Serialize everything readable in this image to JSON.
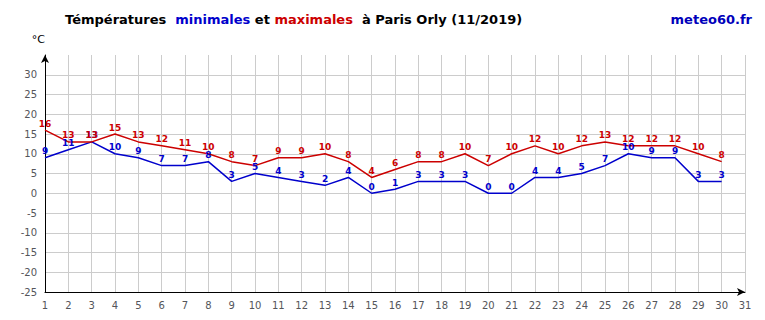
{
  "chart_data": {
    "type": "line",
    "title": "Témpératures  minimales et maximales  à Paris Orly (11/2019)",
    "y_label": "°C",
    "annotations": [
      {
        "text": "meteo60.fr",
        "color": "#0000bb"
      }
    ],
    "x": [
      1,
      2,
      3,
      4,
      5,
      6,
      7,
      8,
      9,
      10,
      11,
      12,
      13,
      14,
      15,
      16,
      17,
      18,
      19,
      20,
      21,
      22,
      23,
      24,
      25,
      26,
      27,
      28,
      29,
      30
    ],
    "series": [
      {
        "name": "minimales",
        "color": "#0000cc",
        "values": [
          9,
          11,
          13,
          10,
          9,
          7,
          7,
          8,
          3,
          5,
          4,
          3,
          2,
          4,
          0,
          1,
          3,
          3,
          3,
          0,
          0,
          4,
          4,
          5,
          7,
          10,
          9,
          9,
          3,
          3
        ]
      },
      {
        "name": "maximales",
        "color": "#cc0000",
        "values": [
          16,
          13,
          13,
          15,
          13,
          12,
          11,
          10,
          8,
          7,
          9,
          9,
          10,
          8,
          4,
          6,
          8,
          8,
          10,
          7,
          10,
          12,
          10,
          12,
          13,
          12,
          12,
          12,
          10,
          8
        ]
      }
    ],
    "xlim": [
      1,
      31
    ],
    "xticks": [
      1,
      2,
      3,
      4,
      5,
      6,
      7,
      8,
      9,
      10,
      11,
      12,
      13,
      14,
      15,
      16,
      17,
      18,
      19,
      20,
      21,
      22,
      23,
      24,
      25,
      26,
      27,
      28,
      29,
      30,
      31
    ],
    "ylim": [
      -25,
      35
    ],
    "yticks": [
      -25,
      -20,
      -15,
      -10,
      -5,
      0,
      5,
      10,
      15,
      20,
      25,
      30
    ],
    "grid": true,
    "data_labels": true
  }
}
